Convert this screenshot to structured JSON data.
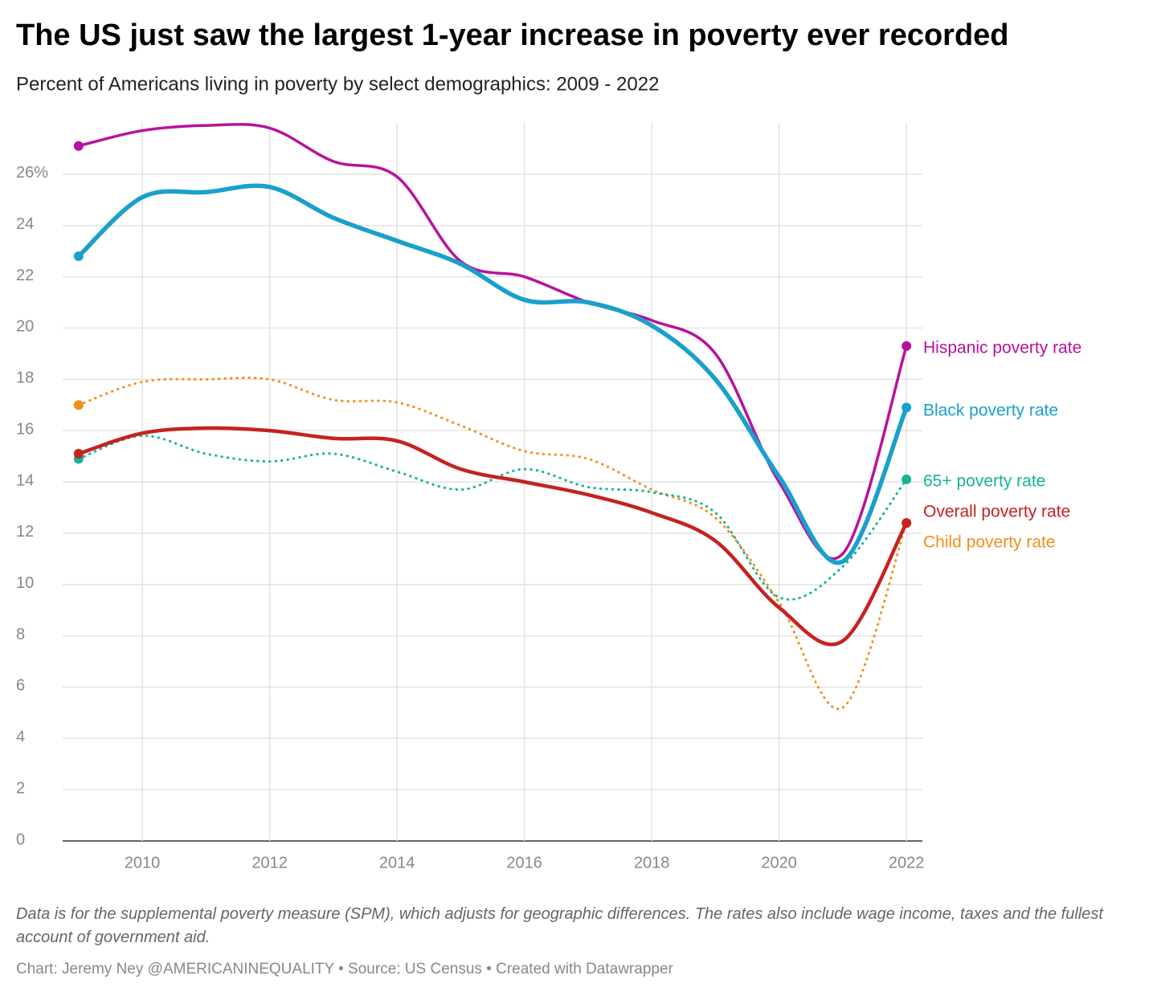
{
  "chart_data": {
    "type": "line",
    "title": "The US just saw the largest 1-year increase in poverty ever recorded",
    "subtitle": "Percent of Americans living in poverty by select demographics: 2009 - 2022",
    "notes": "Data is for the supplemental poverty measure (SPM), which adjusts for geographic differences. The rates also include wage income, taxes and the fullest account of government aid.",
    "source": "Chart: Jeremy Ney @AMERICANINEQUALITY • Source: US Census • Created with Datawrapper",
    "x": [
      2009,
      2010,
      2011,
      2012,
      2013,
      2014,
      2015,
      2016,
      2017,
      2018,
      2019,
      2020,
      2021,
      2022
    ],
    "xlim": [
      2008.75,
      2022.25
    ],
    "xticks": [
      2010,
      2012,
      2014,
      2016,
      2018,
      2020,
      2022
    ],
    "ylim": [
      0,
      28
    ],
    "yticks": [
      0,
      2,
      4,
      6,
      8,
      10,
      12,
      14,
      16,
      18,
      20,
      22,
      24,
      {
        "value": 26,
        "label": "26%"
      }
    ],
    "grid": true,
    "series": [
      {
        "name": "Child poverty rate",
        "color": "#f28f1c",
        "dashed": true,
        "values": [
          17.0,
          17.9,
          18.0,
          18.0,
          17.2,
          17.1,
          16.2,
          15.2,
          14.9,
          13.7,
          12.6,
          9.3,
          5.2,
          12.4
        ]
      },
      {
        "name": "65+ poverty rate",
        "color": "#17b394",
        "dashed": true,
        "values": [
          14.9,
          15.8,
          15.1,
          14.8,
          15.1,
          14.4,
          13.7,
          14.5,
          13.8,
          13.6,
          12.8,
          9.5,
          10.7,
          14.1
        ]
      },
      {
        "name": "Hispanic poverty rate",
        "color": "#b8129d",
        "dashed": false,
        "values": [
          27.1,
          27.7,
          27.9,
          27.8,
          26.5,
          25.9,
          22.6,
          22.0,
          21.0,
          20.3,
          19.0,
          14.0,
          11.2,
          19.3
        ]
      },
      {
        "name": "Black poverty rate",
        "color": "#1aa0cb",
        "dashed": false,
        "values": [
          22.8,
          25.1,
          25.3,
          25.5,
          24.3,
          23.4,
          22.5,
          21.1,
          21.0,
          20.1,
          18.0,
          14.2,
          10.9,
          16.9
        ]
      },
      {
        "name": "Overall poverty rate",
        "color": "#c52220",
        "dashed": false,
        "values": [
          15.1,
          15.9,
          16.1,
          16.0,
          15.7,
          15.6,
          14.5,
          14.0,
          13.5,
          12.8,
          11.7,
          9.1,
          7.8,
          12.4
        ]
      }
    ]
  }
}
